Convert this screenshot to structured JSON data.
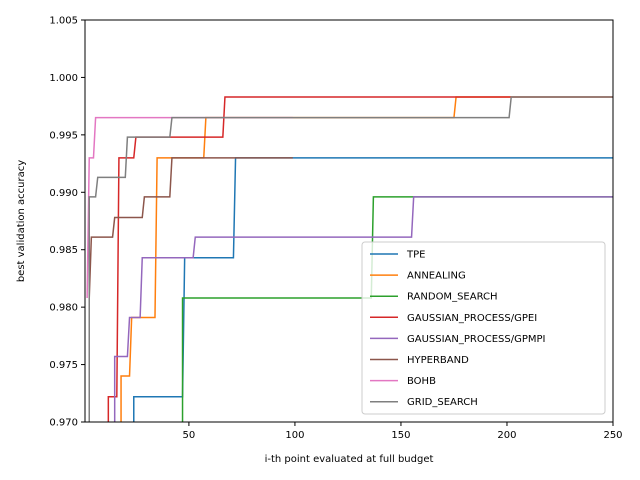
{
  "chart_data": {
    "type": "line",
    "step": true,
    "xlabel": "i-th point evaluated at full budget",
    "ylabel": "best validation accuracy",
    "xlim": [
      1,
      250
    ],
    "ylim": [
      0.97,
      1.005
    ],
    "xticks": [
      50,
      100,
      150,
      200,
      250
    ],
    "yticks": [
      0.97,
      0.975,
      0.98,
      0.985,
      0.99,
      0.995,
      1.0,
      1.005
    ],
    "xtick_labels": [
      "50",
      "100",
      "150",
      "200",
      "250"
    ],
    "ytick_labels": [
      "0.970",
      "0.975",
      "0.980",
      "0.985",
      "0.990",
      "0.995",
      "1.000",
      "1.005"
    ],
    "grid": false,
    "legend_position": "lower-right",
    "series": [
      {
        "name": "TPE",
        "color": "#1f77b4",
        "points": [
          [
            24,
            0.97
          ],
          [
            24,
            0.9722
          ],
          [
            47,
            0.9722
          ],
          [
            48,
            0.9843
          ],
          [
            71,
            0.9843
          ],
          [
            72,
            0.993
          ],
          [
            250,
            0.993
          ]
        ]
      },
      {
        "name": "ANNEALING",
        "color": "#ff7f0e",
        "points": [
          [
            18,
            0.97
          ],
          [
            18,
            0.974
          ],
          [
            22,
            0.974
          ],
          [
            23,
            0.9791
          ],
          [
            34,
            0.9791
          ],
          [
            35,
            0.993
          ],
          [
            57,
            0.993
          ],
          [
            58,
            0.9965
          ],
          [
            175,
            0.9965
          ],
          [
            176,
            0.9983
          ],
          [
            250,
            0.9983
          ]
        ]
      },
      {
        "name": "RANDOM_SEARCH",
        "color": "#2ca02c",
        "points": [
          [
            47,
            0.97
          ],
          [
            47,
            0.9808
          ],
          [
            136,
            0.9808
          ],
          [
            137,
            0.9896
          ],
          [
            250,
            0.9896
          ]
        ]
      },
      {
        "name": "GAUSSIAN_PROCESS/GPEI",
        "color": "#d62728",
        "points": [
          [
            12,
            0.97
          ],
          [
            12,
            0.9722
          ],
          [
            16,
            0.9722
          ],
          [
            17,
            0.993
          ],
          [
            24,
            0.993
          ],
          [
            25,
            0.9948
          ],
          [
            66,
            0.9948
          ],
          [
            67,
            0.9983
          ],
          [
            250,
            0.9983
          ]
        ]
      },
      {
        "name": "GAUSSIAN_PROCESS/GPMPI",
        "color": "#9467bd",
        "points": [
          [
            15,
            0.97
          ],
          [
            15,
            0.9757
          ],
          [
            21,
            0.9757
          ],
          [
            22,
            0.9791
          ],
          [
            27,
            0.9791
          ],
          [
            28,
            0.9843
          ],
          [
            52,
            0.9843
          ],
          [
            53,
            0.9861
          ],
          [
            155,
            0.9861
          ],
          [
            156,
            0.9896
          ],
          [
            250,
            0.9896
          ]
        ]
      },
      {
        "name": "HYPERBAND",
        "color": "#8c564b",
        "points": [
          [
            3,
            0.9808
          ],
          [
            4,
            0.9861
          ],
          [
            14,
            0.9861
          ],
          [
            15,
            0.9878
          ],
          [
            28,
            0.9878
          ],
          [
            29,
            0.9896
          ],
          [
            41,
            0.9896
          ],
          [
            42,
            0.993
          ],
          [
            99,
            0.993
          ]
        ]
      },
      {
        "name": "BOHB",
        "color": "#e377c2",
        "points": [
          [
            2,
            0.9808
          ],
          [
            3,
            0.993
          ],
          [
            5,
            0.993
          ],
          [
            6,
            0.9965
          ],
          [
            99,
            0.9965
          ]
        ]
      },
      {
        "name": "GRID_SEARCH",
        "color": "#7f7f7f",
        "points": [
          [
            3,
            0.97
          ],
          [
            3,
            0.9896
          ],
          [
            6,
            0.9896
          ],
          [
            7,
            0.9913
          ],
          [
            20,
            0.9913
          ],
          [
            21,
            0.9948
          ],
          [
            41,
            0.9948
          ],
          [
            42,
            0.9965
          ],
          [
            201,
            0.9965
          ],
          [
            202,
            0.9983
          ],
          [
            250,
            0.9983
          ]
        ]
      }
    ]
  }
}
